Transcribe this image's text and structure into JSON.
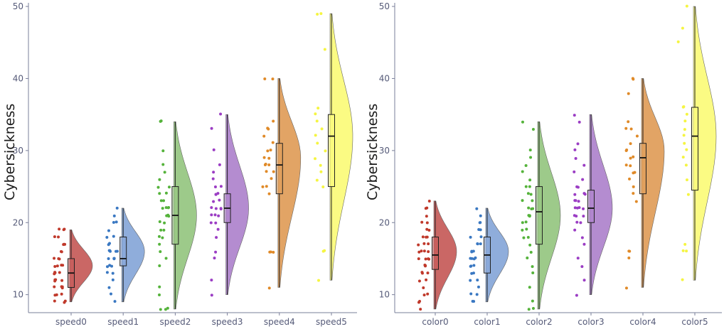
{
  "chart_data": [
    {
      "type": "raincloud",
      "ylabel": "Cybersickness",
      "ylim": [
        7.5,
        50.5
      ],
      "yticks": [
        10,
        20,
        30,
        40,
        50
      ],
      "categories": [
        "speed0",
        "speed1",
        "speed2",
        "speed3",
        "speed4",
        "speed5"
      ],
      "colors": [
        "#c0392b",
        "#3a78c2",
        "#55b33b",
        "#9b3dc4",
        "#e08a28",
        "#f5f542"
      ],
      "fills": [
        "#c65a58",
        "#86a6d8",
        "#95c680",
        "#ae82cc",
        "#e09c58",
        "#fbfb78"
      ],
      "stats": [
        {
          "min": 9,
          "q1": 11,
          "median": 13,
          "q3": 15,
          "max": 19,
          "vmin": 9,
          "vmax": 19,
          "mode": 14
        },
        {
          "min": 9,
          "q1": 14,
          "median": 15,
          "q3": 18,
          "max": 22,
          "vmin": 9,
          "vmax": 22,
          "mode": 16
        },
        {
          "min": 8,
          "q1": 17,
          "median": 21,
          "q3": 25,
          "max": 34,
          "vmin": 8,
          "vmax": 34,
          "mode": 21
        },
        {
          "min": 10,
          "q1": 20,
          "median": 22,
          "q3": 24,
          "max": 35,
          "vmin": 10,
          "vmax": 35,
          "mode": 22
        },
        {
          "min": 11,
          "q1": 24,
          "median": 28,
          "q3": 31,
          "max": 40,
          "vmin": 11,
          "vmax": 40,
          "mode": 29
        },
        {
          "min": 12,
          "q1": 25,
          "median": 32,
          "q3": 35,
          "max": 49,
          "vmin": 12,
          "vmax": 49,
          "mode": 32
        }
      ],
      "points": [
        [
          9,
          9,
          9,
          10,
          10,
          10,
          11,
          11,
          11,
          11,
          12,
          12,
          12,
          12,
          13,
          13,
          13,
          13,
          14,
          14,
          14,
          14,
          15,
          15,
          15,
          16,
          16,
          17,
          17,
          17,
          18,
          18,
          19,
          19,
          19
        ],
        [
          9,
          10,
          11,
          12,
          13,
          13,
          14,
          14,
          14,
          15,
          15,
          15,
          15,
          16,
          16,
          16,
          16,
          16,
          17,
          17,
          18,
          18,
          19,
          20,
          20,
          21,
          22
        ],
        [
          8,
          8,
          8,
          10,
          11,
          14,
          15,
          16,
          17,
          18,
          18,
          19,
          19,
          20,
          20,
          21,
          21,
          21,
          22,
          22,
          22,
          22,
          23,
          23,
          24,
          24,
          25,
          25,
          26,
          27,
          28,
          30,
          34,
          34
        ],
        [
          10,
          12,
          15,
          16,
          18,
          19,
          20,
          20,
          21,
          21,
          21,
          22,
          22,
          22,
          22,
          23,
          23,
          24,
          24,
          24,
          25,
          25,
          26,
          27,
          28,
          30,
          33,
          35
        ],
        [
          11,
          16,
          16,
          16,
          24,
          25,
          25,
          26,
          27,
          27,
          28,
          28,
          28,
          29,
          29,
          30,
          30,
          31,
          32,
          33,
          33,
          34,
          40,
          40
        ],
        [
          12,
          16,
          16,
          25,
          26,
          27,
          28,
          29,
          30,
          31,
          32,
          33,
          34,
          35,
          36,
          44,
          49,
          49
        ]
      ]
    },
    {
      "type": "raincloud",
      "ylabel": "Cybersickness",
      "ylim": [
        7.5,
        50.5
      ],
      "yticks": [
        10,
        20,
        30,
        40,
        50
      ],
      "categories": [
        "color0",
        "color1",
        "color2",
        "color3",
        "color4",
        "color5"
      ],
      "colors": [
        "#c0392b",
        "#3a78c2",
        "#55b33b",
        "#9b3dc4",
        "#e08a28",
        "#f5f542"
      ],
      "fills": [
        "#c65a58",
        "#86a6d8",
        "#95c680",
        "#ae82cc",
        "#e09c58",
        "#fbfb78"
      ],
      "stats": [
        {
          "min": 8,
          "q1": 13.5,
          "median": 15.5,
          "q3": 18,
          "max": 23,
          "vmin": 8,
          "vmax": 23,
          "mode": 16
        },
        {
          "min": 9,
          "q1": 13,
          "median": 15.5,
          "q3": 18,
          "max": 22,
          "vmin": 9,
          "vmax": 22,
          "mode": 16
        },
        {
          "min": 8,
          "q1": 17,
          "median": 21.5,
          "q3": 25,
          "max": 34,
          "vmin": 8,
          "vmax": 34,
          "mode": 21
        },
        {
          "min": 10,
          "q1": 20,
          "median": 22,
          "q3": 24.5,
          "max": 35,
          "vmin": 10,
          "vmax": 35,
          "mode": 22
        },
        {
          "min": 11,
          "q1": 24,
          "median": 29,
          "q3": 31,
          "max": 40,
          "vmin": 11,
          "vmax": 40,
          "mode": 30
        },
        {
          "min": 12,
          "q1": 24.5,
          "median": 32,
          "q3": 36,
          "max": 50,
          "vmin": 12,
          "vmax": 50,
          "mode": 32
        }
      ],
      "points": [
        [
          8,
          9,
          9,
          10,
          10,
          11,
          12,
          12,
          13,
          13,
          13,
          14,
          14,
          14,
          15,
          15,
          15,
          15,
          16,
          16,
          16,
          16,
          17,
          17,
          17,
          18,
          18,
          18,
          19,
          19,
          20,
          20,
          21,
          22,
          22,
          23
        ],
        [
          9,
          9,
          10,
          10,
          11,
          12,
          12,
          13,
          13,
          14,
          14,
          14,
          15,
          15,
          15,
          15,
          16,
          16,
          16,
          17,
          17,
          17,
          18,
          18,
          19,
          19,
          20,
          20,
          21,
          22
        ],
        [
          8,
          8,
          9,
          11,
          13,
          14,
          15,
          16,
          17,
          18,
          18,
          19,
          19,
          20,
          20,
          21,
          21,
          21,
          22,
          22,
          22,
          23,
          23,
          24,
          24,
          25,
          25,
          26,
          27,
          28,
          29,
          30,
          33,
          34
        ],
        [
          10,
          12,
          14,
          15,
          17,
          18,
          19,
          20,
          20,
          21,
          21,
          21,
          22,
          22,
          22,
          22,
          23,
          23,
          23,
          24,
          24,
          24,
          25,
          25,
          26,
          27,
          28,
          29,
          30,
          31,
          34,
          35
        ],
        [
          11,
          15,
          16,
          16,
          23,
          24,
          25,
          26,
          27,
          27,
          28,
          28,
          29,
          29,
          30,
          30,
          31,
          32,
          33,
          33,
          34,
          38,
          40,
          40
        ],
        [
          12,
          16,
          16,
          17,
          24,
          26,
          28,
          29,
          30,
          31,
          32,
          33,
          34,
          35,
          36,
          36,
          45,
          47,
          50
        ]
      ]
    }
  ]
}
